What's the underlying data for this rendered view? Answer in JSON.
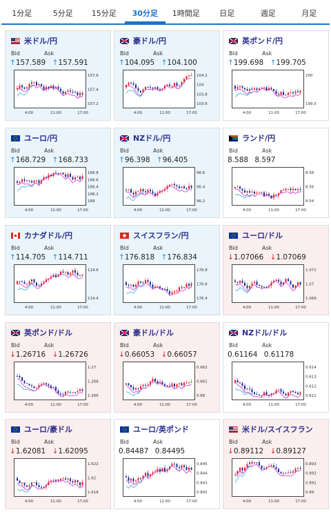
{
  "tabs": [
    "1分足",
    "5分足",
    "15分足",
    "30分足",
    "1時間足",
    "日足",
    "週足",
    "月足"
  ],
  "active_tab": "30分足",
  "labels": {
    "bid": "Bid",
    "ask": "Ask"
  },
  "x_ticks": [
    "4:00",
    "11:00",
    "17:00"
  ],
  "cards": [
    {
      "name": "米ドル/円",
      "trend": "up",
      "flag": "us-jp",
      "bid": "157.589",
      "ask": "157.591",
      "dir": "up",
      "yticks": [
        "157.6",
        "157.4",
        "157.2"
      ],
      "seed": 1
    },
    {
      "name": "豪ドル/円",
      "trend": "up",
      "flag": "au-jp",
      "bid": "104.095",
      "ask": "104.100",
      "dir": "up",
      "yticks": [
        "104.2",
        "104",
        "103.8",
        "103.6"
      ],
      "seed": 2
    },
    {
      "name": "英ポンド/円",
      "trend": "flat",
      "flag": "gb-jp",
      "bid": "199.698",
      "ask": "199.705",
      "dir": "up",
      "yticks": [
        "200",
        "199.5"
      ],
      "seed": 3
    },
    {
      "name": "ユーロ/円",
      "trend": "up",
      "flag": "eu-jp",
      "bid": "168.729",
      "ask": "168.733",
      "dir": "up",
      "yticks": [
        "168.8",
        "168.6",
        "168.4",
        "168.2",
        "168"
      ],
      "seed": 4
    },
    {
      "name": "NZドル/円",
      "trend": "up",
      "flag": "nz-jp",
      "bid": "96.398",
      "ask": "96.405",
      "dir": "up",
      "yticks": [
        "96.6",
        "96.4",
        "96.2"
      ],
      "seed": 5
    },
    {
      "name": "ランド/円",
      "trend": "flat",
      "flag": "za-jp",
      "bid": "8.588",
      "ask": "8.597",
      "dir": "none",
      "yticks": [
        "8.58",
        "8.56",
        "8.54"
      ],
      "seed": 6
    },
    {
      "name": "カナダドル/円",
      "trend": "up",
      "flag": "ca-jp",
      "bid": "114.705",
      "ask": "114.711",
      "dir": "up",
      "yticks": [
        "114.6",
        "114.4"
      ],
      "seed": 7
    },
    {
      "name": "スイスフラン/円",
      "trend": "up",
      "flag": "ch-jp",
      "bid": "176.818",
      "ask": "176.834",
      "dir": "up",
      "yticks": [
        "176.8",
        "176.6",
        "176.4"
      ],
      "seed": 8
    },
    {
      "name": "ユーロ/ドル",
      "trend": "down",
      "flag": "eu-us",
      "bid": "1.07066",
      "ask": "1.07069",
      "dir": "down",
      "yticks": [
        "1.071",
        "1.07",
        "1.069"
      ],
      "seed": 9
    },
    {
      "name": "英ポンド/ドル",
      "trend": "down",
      "flag": "gb-us",
      "bid": "1.26716",
      "ask": "1.26726",
      "dir": "down",
      "yticks": [
        "1.27",
        "1.268",
        "1.266"
      ],
      "seed": 10
    },
    {
      "name": "豪ドル/ドル",
      "trend": "down",
      "flag": "au-us",
      "bid": "0.66053",
      "ask": "0.66057",
      "dir": "down",
      "yticks": [
        "0.662",
        "0.661",
        "0.66"
      ],
      "seed": 11
    },
    {
      "name": "NZドル/ドル",
      "trend": "flat",
      "flag": "nz-us",
      "bid": "0.61164",
      "ask": "0.61178",
      "dir": "none",
      "yticks": [
        "0.614",
        "0.613",
        "0.612",
        "0.611"
      ],
      "seed": 12
    },
    {
      "name": "ユーロ/豪ドル",
      "trend": "down",
      "flag": "eu-au",
      "bid": "1.62081",
      "ask": "1.62095",
      "dir": "down",
      "yticks": [
        "1.622",
        "1.62",
        "1.618"
      ],
      "seed": 13
    },
    {
      "name": "ユーロ/英ポンド",
      "trend": "flat",
      "flag": "eu-gb",
      "bid": "0.84487",
      "ask": "0.84495",
      "dir": "none",
      "yticks": [
        "0.845",
        "0.844",
        "0.843",
        "0.842"
      ],
      "seed": 14
    },
    {
      "name": "米ドル/スイスフラン",
      "trend": "down",
      "flag": "us-ch",
      "bid": "0.89112",
      "ask": "0.89127",
      "dir": "down",
      "yticks": [
        "0.893",
        "0.892",
        "0.891",
        "0.89"
      ],
      "seed": 15
    }
  ],
  "colors": {
    "up_candle": "#e02020",
    "down_candle": "#1a2b8f",
    "ma_a": "#cc33cc",
    "ma_b": "#33aadd"
  }
}
